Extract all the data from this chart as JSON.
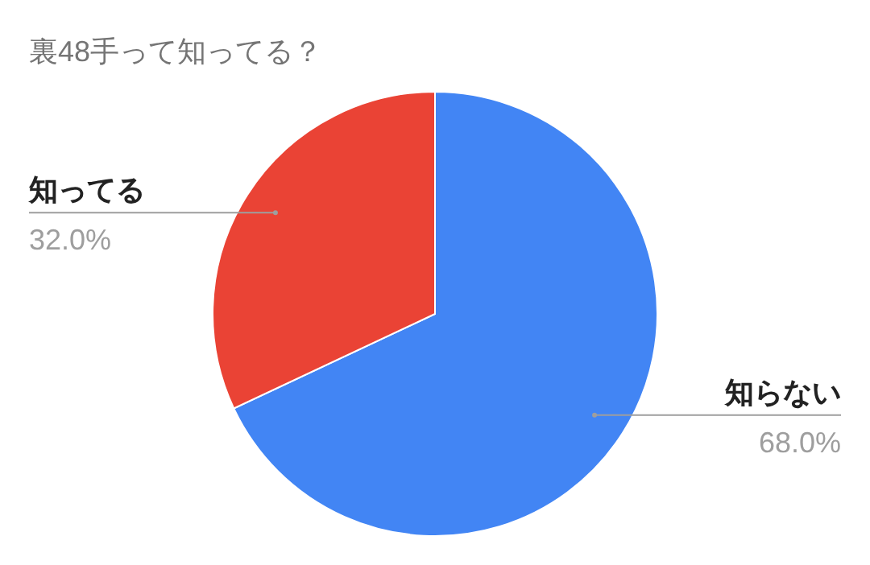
{
  "chart_data": {
    "type": "pie",
    "title": "裏48手って知ってる？",
    "categories": [
      "知らない",
      "知ってる"
    ],
    "values": [
      68,
      32
    ],
    "colors": [
      "#4285f4",
      "#ea4335"
    ],
    "value_labels": [
      "68.0%",
      "32.0%"
    ]
  }
}
